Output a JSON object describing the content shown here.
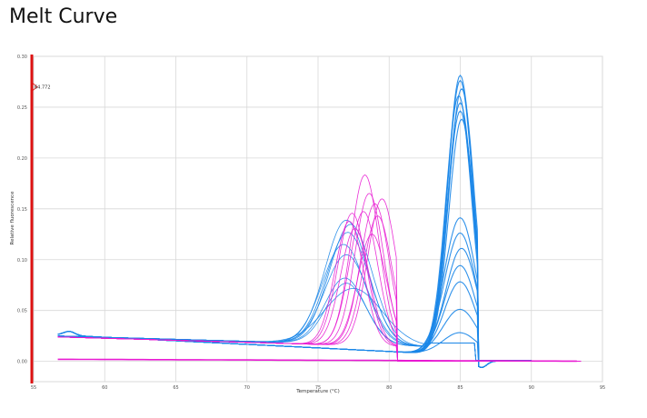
{
  "title": "Melt Curve",
  "chart_data": {
    "type": "line",
    "xlabel": "Temperature (°C)",
    "ylabel": "Relative fluorescence",
    "xlim": [
      55,
      95
    ],
    "ylim": [
      -0.02,
      0.3
    ],
    "xticks": [
      55,
      60,
      65,
      70,
      75,
      80,
      85,
      90,
      95
    ],
    "yticks": [
      0.0,
      0.05,
      0.1,
      0.15,
      0.2,
      0.25,
      0.3
    ],
    "ytick_labels": [
      "0.00",
      "0.05",
      "0.10",
      "0.15",
      "0.20",
      "0.25",
      "0.30"
    ],
    "grid": true,
    "marker": {
      "x": 55,
      "label": "64.772",
      "color": "#dd1111"
    },
    "colors": {
      "blue": "#1a86e8",
      "magenta": "#e81ad2",
      "grid": "#d8d8d8"
    },
    "series": [
      {
        "group": "blue",
        "peak_x": 85.0,
        "peak_y": 0.275,
        "width": 0.9
      },
      {
        "group": "blue",
        "peak_x": 85.0,
        "peak_y": 0.27,
        "width": 0.9
      },
      {
        "group": "blue",
        "peak_x": 85.1,
        "peak_y": 0.262,
        "width": 0.9
      },
      {
        "group": "blue",
        "peak_x": 84.9,
        "peak_y": 0.255,
        "width": 0.9
      },
      {
        "group": "blue",
        "peak_x": 85.0,
        "peak_y": 0.248,
        "width": 0.9
      },
      {
        "group": "blue",
        "peak_x": 85.0,
        "peak_y": 0.24,
        "width": 0.9
      },
      {
        "group": "blue",
        "peak_x": 85.1,
        "peak_y": 0.232,
        "width": 0.9
      },
      {
        "group": "blue",
        "peak_x": 85.0,
        "peak_y": 0.135,
        "width": 1.1
      },
      {
        "group": "blue",
        "peak_x": 85.0,
        "peak_y": 0.12,
        "width": 1.1
      },
      {
        "group": "blue",
        "peak_x": 85.1,
        "peak_y": 0.105,
        "width": 1.1
      },
      {
        "group": "blue",
        "peak_x": 85.0,
        "peak_y": 0.088,
        "width": 1.1
      },
      {
        "group": "blue",
        "peak_x": 85.0,
        "peak_y": 0.072,
        "width": 1.1
      },
      {
        "group": "blue",
        "peak_x": 85.0,
        "peak_y": 0.045,
        "width": 1.2
      },
      {
        "group": "blue",
        "peak_x": 85.0,
        "peak_y": 0.022,
        "width": 1.2
      },
      {
        "group": "blue",
        "peak_x": 77.0,
        "peak_y": 0.122,
        "width": 1.5
      },
      {
        "group": "blue",
        "peak_x": 77.3,
        "peak_y": 0.118,
        "width": 1.5
      },
      {
        "group": "blue",
        "peak_x": 77.1,
        "peak_y": 0.11,
        "width": 1.5
      },
      {
        "group": "blue",
        "peak_x": 76.8,
        "peak_y": 0.098,
        "width": 1.5
      },
      {
        "group": "blue",
        "peak_x": 77.0,
        "peak_y": 0.088,
        "width": 1.5
      },
      {
        "group": "blue",
        "peak_x": 76.9,
        "peak_y": 0.065,
        "width": 1.4
      },
      {
        "group": "blue",
        "peak_x": 77.0,
        "peak_y": 0.06,
        "width": 1.4
      },
      {
        "group": "blue",
        "peak_x": 77.5,
        "peak_y": 0.055,
        "width": 2.0
      },
      {
        "group": "magenta",
        "peak_x": 77.4,
        "peak_y": 0.13,
        "width": 1.0
      },
      {
        "group": "magenta",
        "peak_x": 77.2,
        "peak_y": 0.122,
        "width": 1.0
      },
      {
        "group": "magenta",
        "peak_x": 77.6,
        "peak_y": 0.115,
        "width": 1.0
      },
      {
        "group": "magenta",
        "peak_x": 78.3,
        "peak_y": 0.168,
        "width": 1.0
      },
      {
        "group": "magenta",
        "peak_x": 78.6,
        "peak_y": 0.15,
        "width": 1.0
      },
      {
        "group": "magenta",
        "peak_x": 78.2,
        "peak_y": 0.132,
        "width": 1.0
      },
      {
        "group": "magenta",
        "peak_x": 79.0,
        "peak_y": 0.14,
        "width": 1.0
      },
      {
        "group": "magenta",
        "peak_x": 79.5,
        "peak_y": 0.145,
        "width": 1.0
      },
      {
        "group": "magenta",
        "peak_x": 79.2,
        "peak_y": 0.128,
        "width": 1.0
      },
      {
        "group": "magenta",
        "peak_x": 78.8,
        "peak_y": 0.11,
        "width": 1.0
      }
    ]
  }
}
